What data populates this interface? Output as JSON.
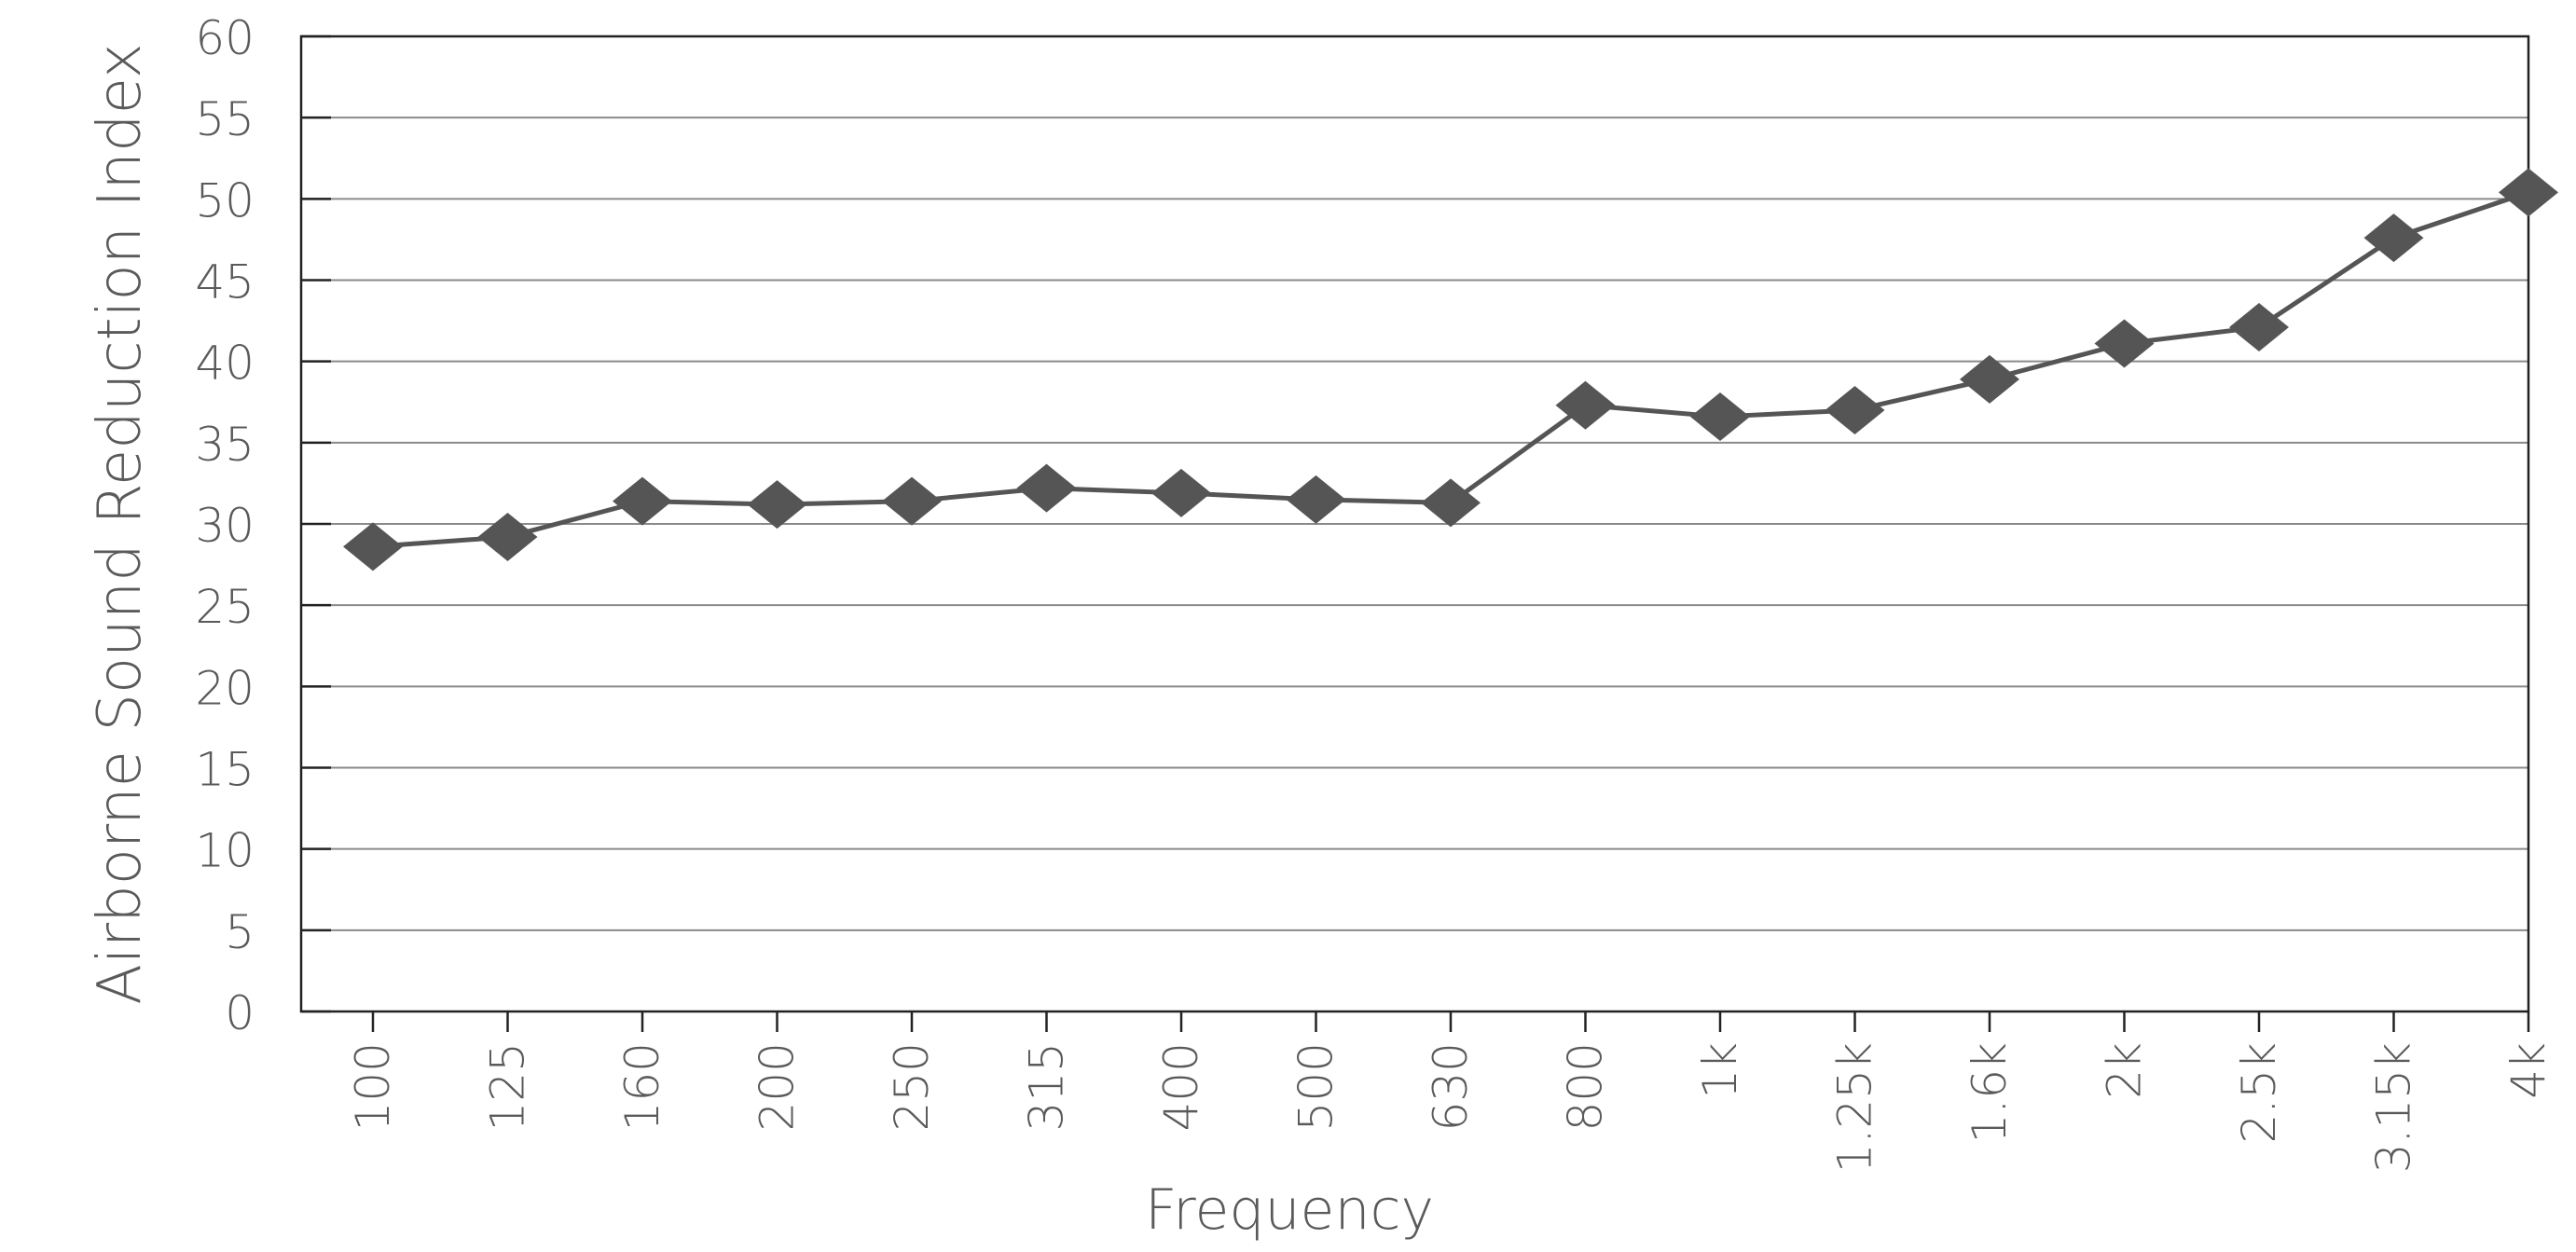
{
  "chart_data": {
    "type": "line",
    "title": "",
    "xlabel": "Frequency",
    "ylabel": "Airborne Sound Reduction Index",
    "categories": [
      "100",
      "125",
      "160",
      "200",
      "250",
      "315",
      "400",
      "500",
      "630",
      "800",
      "1k",
      "1.25k",
      "1.6k",
      "2k",
      "2.5k",
      "3.15k",
      "4k"
    ],
    "yticks": [
      "0",
      "5",
      "10",
      "15",
      "20",
      "25",
      "30",
      "35",
      "40",
      "45",
      "50",
      "55",
      "60"
    ],
    "ylim": [
      0,
      60
    ],
    "grid": true,
    "legend": "none",
    "series": [
      {
        "values": [
          28.6,
          29.2,
          31.4,
          31.2,
          31.4,
          32.2,
          31.9,
          31.5,
          31.3,
          37.3,
          36.6,
          37.0,
          38.9,
          41.1,
          42.1,
          47.6,
          50.4
        ],
        "marker": "diamond",
        "color": "#555555"
      }
    ]
  },
  "colors": {
    "line": "#555555",
    "marker": "#555555",
    "grid": "#8a8a8a",
    "axis": "#222222",
    "text": "#5a5a5a"
  }
}
